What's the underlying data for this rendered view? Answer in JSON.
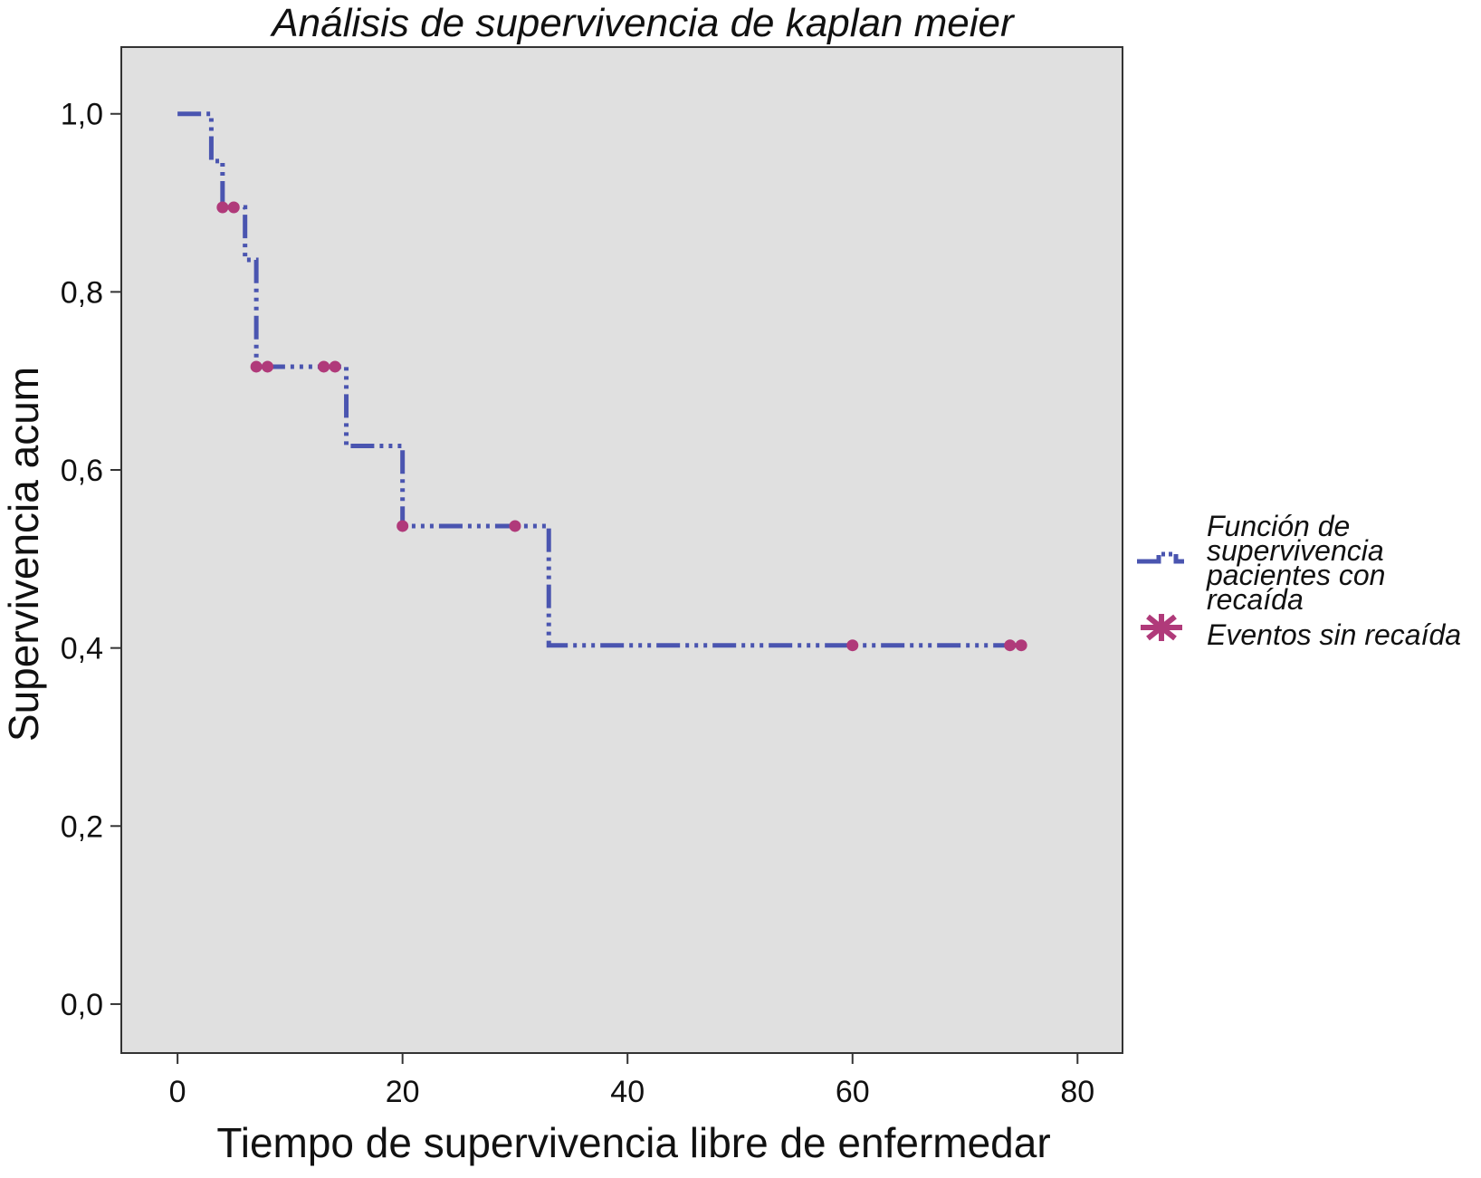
{
  "chart_data": {
    "type": "line",
    "title": "Análisis de supervivencia de kaplan meier",
    "xlabel": "Tiempo de supervivencia libre de enfermedar",
    "ylabel": "Supervivencia acum",
    "xlim": [
      -5,
      84
    ],
    "ylim": [
      -0.055,
      1.075
    ],
    "x_ticks": [
      0,
      20,
      40,
      60,
      80
    ],
    "x_tick_labels": [
      "0",
      "20",
      "40",
      "60",
      "80"
    ],
    "y_ticks": [
      0.0,
      0.2,
      0.4,
      0.6,
      0.8,
      1.0
    ],
    "y_tick_labels": [
      "0,0",
      "0,2",
      "0,4",
      "0,6",
      "0,8",
      "1,0"
    ],
    "grid": false,
    "plot_background": "#e0e0e0",
    "legend_position": "right",
    "series": [
      {
        "name": "Función de supervivencia pacientes con recaída",
        "legend_lines": [
          "Función de",
          "supervivencia",
          "pacientes con",
          "recaída"
        ],
        "kind": "step",
        "color": "#4a55b0",
        "x": [
          0,
          3,
          4,
          6,
          7,
          15,
          20,
          33,
          75
        ],
        "y": [
          1.0,
          0.947,
          0.895,
          0.836,
          0.716,
          0.627,
          0.537,
          0.403,
          0.403
        ]
      },
      {
        "name": "Eventos sin recaída",
        "legend_lines": [
          "Eventos sin recaída"
        ],
        "kind": "censor",
        "color": "#b03a7a",
        "x": [
          4,
          5,
          7,
          8,
          13,
          14,
          20,
          30,
          60,
          74,
          75
        ],
        "y": [
          0.895,
          0.895,
          0.716,
          0.716,
          0.716,
          0.716,
          0.537,
          0.537,
          0.403,
          0.403,
          0.403
        ]
      }
    ]
  }
}
